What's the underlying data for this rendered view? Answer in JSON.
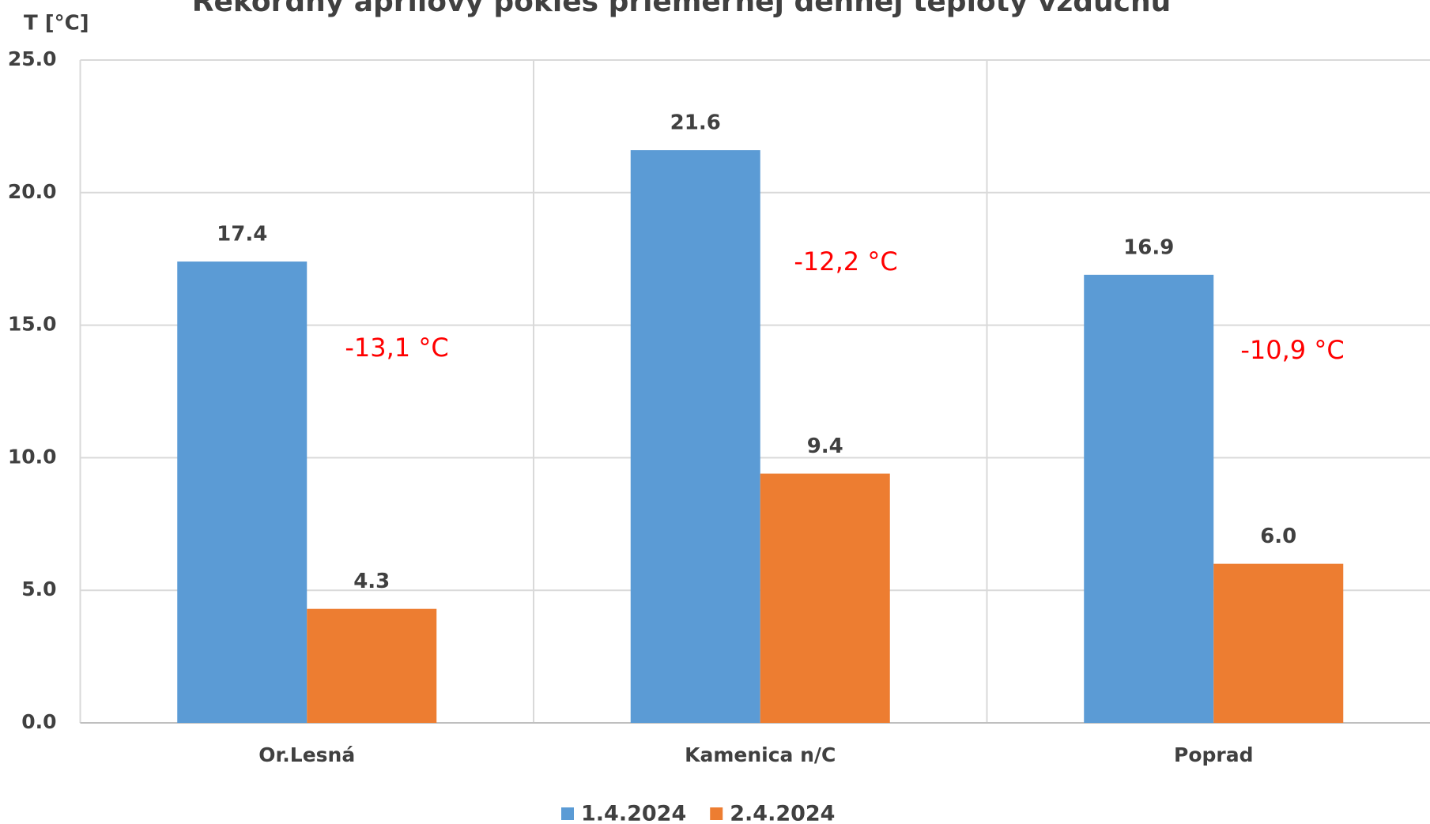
{
  "chart_data": {
    "type": "bar",
    "title": "Rekordný aprílový pokles priemernej dennej teploty vzduchu",
    "y_label": "T [°C]",
    "categories": [
      "Or.Lesná",
      "Kamenica n/C",
      "Poprad"
    ],
    "series": [
      {
        "name": "1.4.2024",
        "color": "#5b9bd5",
        "values": [
          17.4,
          21.6,
          16.9
        ],
        "value_labels": [
          "17.4",
          "21.6",
          "16.9"
        ]
      },
      {
        "name": "2.4.2024",
        "color": "#ed7d31",
        "values": [
          4.3,
          9.4,
          6.0
        ],
        "value_labels": [
          "4.3",
          "9.4",
          "6.0"
        ]
      }
    ],
    "annotations": [
      "-13,1 °C",
      "-12,2 °C",
      "-10,9 °C"
    ],
    "annotation_color": "#ff0000",
    "ylim": [
      0,
      25
    ],
    "yticks": [
      {
        "value": 0,
        "label": "0.0"
      },
      {
        "value": 5,
        "label": "5.0"
      },
      {
        "value": 10,
        "label": "10.0"
      },
      {
        "value": 15,
        "label": "15.0"
      },
      {
        "value": 20,
        "label": "20.0"
      },
      {
        "value": 25,
        "label": "25.0"
      }
    ],
    "grid": true,
    "legend": "bottom"
  }
}
